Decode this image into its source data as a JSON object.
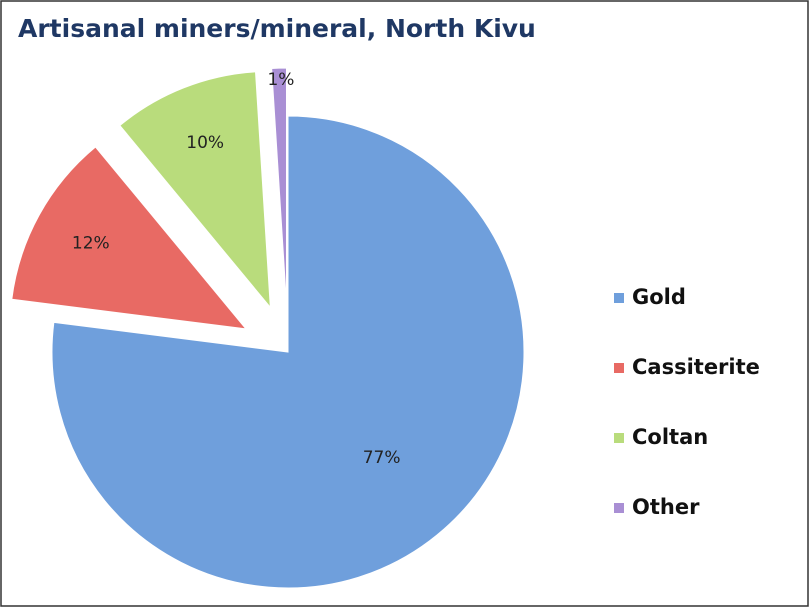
{
  "chart_data": {
    "type": "pie",
    "title": "Artisanal miners/mineral, North Kivu",
    "categories": [
      "Gold",
      "Cassiterite",
      "Coltan",
      "Other"
    ],
    "values": [
      77,
      12,
      10,
      1
    ],
    "value_labels": [
      "77%",
      "12%",
      "10%",
      "1%"
    ],
    "colors": [
      "#6f9fdc",
      "#e86a64",
      "#b9dc7c",
      "#a98fd4"
    ],
    "legend": "right"
  }
}
